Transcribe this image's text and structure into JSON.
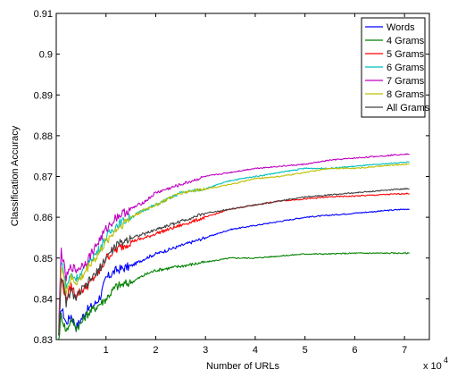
{
  "chart_data": {
    "type": "line",
    "title": "",
    "xlabel": "Number of URLs",
    "ylabel": "Classification Accuracy",
    "x_multiplier_label": "x 10",
    "x_multiplier_exponent": "4",
    "xlim": [
      0,
      7.5
    ],
    "ylim": [
      0.83,
      0.91
    ],
    "x_ticks": [
      1,
      2,
      3,
      4,
      5,
      6,
      7
    ],
    "x_tick_labels": [
      "1",
      "2",
      "3",
      "4",
      "5",
      "6",
      "7"
    ],
    "y_ticks": [
      0.83,
      0.84,
      0.85,
      0.86,
      0.87,
      0.88,
      0.89,
      0.9,
      0.91
    ],
    "y_tick_labels": [
      "0.83",
      "0.84",
      "0.85",
      "0.86",
      "0.87",
      "0.88",
      "0.89",
      "0.9",
      "0.91"
    ],
    "grid": false,
    "legend_position": "top-right",
    "x": [
      0.05,
      0.1,
      0.2,
      0.3,
      0.4,
      0.5,
      0.6,
      0.7,
      0.8,
      0.9,
      1.0,
      1.2,
      1.5,
      1.8,
      2.0,
      2.5,
      3.0,
      3.5,
      4.0,
      4.5,
      5.0,
      5.5,
      6.0,
      6.5,
      7.0,
      7.1
    ],
    "series": [
      {
        "name": "Words",
        "color": "#0000ff",
        "values": [
          0.831,
          0.838,
          0.834,
          0.836,
          0.833,
          0.835,
          0.837,
          0.838,
          0.839,
          0.841,
          0.845,
          0.847,
          0.848,
          0.85,
          0.851,
          0.853,
          0.855,
          0.857,
          0.858,
          0.859,
          0.86,
          0.8605,
          0.861,
          0.8615,
          0.862,
          0.862
        ]
      },
      {
        "name": "4 Grams",
        "color": "#008000",
        "values": [
          0.83,
          0.836,
          0.832,
          0.835,
          0.833,
          0.834,
          0.836,
          0.837,
          0.838,
          0.839,
          0.84,
          0.843,
          0.844,
          0.846,
          0.847,
          0.848,
          0.849,
          0.85,
          0.85,
          0.8505,
          0.851,
          0.851,
          0.8512,
          0.8512,
          0.8512,
          0.8512
        ]
      },
      {
        "name": "5 Grams",
        "color": "#ff0000",
        "values": [
          0.831,
          0.845,
          0.84,
          0.843,
          0.841,
          0.842,
          0.843,
          0.844,
          0.846,
          0.847,
          0.85,
          0.852,
          0.854,
          0.855,
          0.856,
          0.858,
          0.86,
          0.862,
          0.863,
          0.864,
          0.8645,
          0.865,
          0.8652,
          0.8655,
          0.8658,
          0.8658
        ]
      },
      {
        "name": "6 Grams",
        "color": "#00bfbf",
        "values": [
          0.832,
          0.85,
          0.843,
          0.846,
          0.845,
          0.846,
          0.848,
          0.85,
          0.851,
          0.853,
          0.855,
          0.858,
          0.86,
          0.862,
          0.863,
          0.866,
          0.867,
          0.869,
          0.87,
          0.871,
          0.872,
          0.872,
          0.8725,
          0.873,
          0.8735,
          0.8735
        ]
      },
      {
        "name": "7 Grams",
        "color": "#bf00bf",
        "values": [
          0.833,
          0.852,
          0.845,
          0.848,
          0.847,
          0.848,
          0.849,
          0.851,
          0.853,
          0.855,
          0.857,
          0.86,
          0.862,
          0.864,
          0.866,
          0.868,
          0.87,
          0.871,
          0.872,
          0.8725,
          0.873,
          0.874,
          0.8745,
          0.875,
          0.8755,
          0.8755
        ]
      },
      {
        "name": "8 Grams",
        "color": "#bfbf00",
        "values": [
          0.832,
          0.848,
          0.842,
          0.845,
          0.844,
          0.845,
          0.847,
          0.849,
          0.85,
          0.852,
          0.854,
          0.857,
          0.86,
          0.862,
          0.863,
          0.866,
          0.867,
          0.868,
          0.8695,
          0.87,
          0.871,
          0.872,
          0.872,
          0.8725,
          0.873,
          0.873
        ]
      },
      {
        "name": "All Grams",
        "color": "#404040",
        "values": [
          0.831,
          0.846,
          0.839,
          0.842,
          0.84,
          0.842,
          0.843,
          0.845,
          0.846,
          0.848,
          0.85,
          0.853,
          0.855,
          0.856,
          0.857,
          0.859,
          0.861,
          0.862,
          0.863,
          0.864,
          0.865,
          0.8655,
          0.866,
          0.8665,
          0.867,
          0.867
        ]
      }
    ]
  }
}
